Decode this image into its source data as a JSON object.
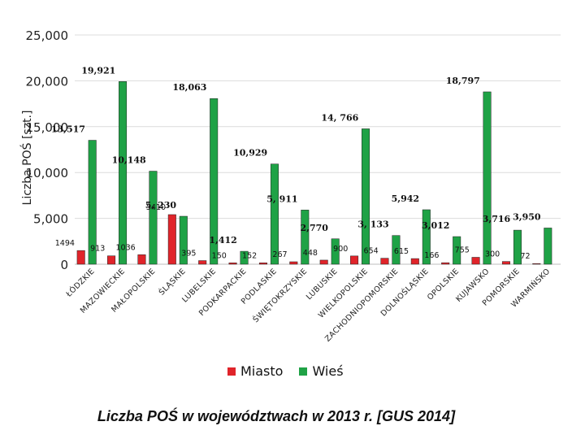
{
  "chart_data": {
    "type": "bar",
    "ylabel": "Liczba POŚ [szt.]",
    "ylim": [
      0,
      25000
    ],
    "yticks": [
      "0",
      "5,000",
      "10,000",
      "15,000",
      "20,000",
      "25,000"
    ],
    "ytick_values": [
      0,
      5000,
      10000,
      15000,
      20000,
      25000
    ],
    "grid": true,
    "categories": [
      "ŁÓDZKIE",
      "MAZOWIECKIE",
      "MAŁOPOLSKIE",
      "ŚLĄSKIE",
      "LUBELSKIE",
      "PODKARPACKIE",
      "PODLASKIE",
      "ŚWIĘTOKRZYSKIE",
      "LUBUSKIE",
      "WIELKOPOLSKIE",
      "ZACHODNIOPOMORSKIE",
      "DOLNOŚLĄSKIE",
      "OPOLSKIE",
      "KUJAWSKO",
      "POMORSKIE",
      "WARMIŃSKO"
    ],
    "series": [
      {
        "name": "Miasto",
        "color": "#e0242a",
        "values": [
          1494,
          913,
          1036,
          5410,
          395,
          150,
          152,
          267,
          448,
          900,
          654,
          615,
          166,
          755,
          300,
          72
        ],
        "labels": [
          "1494",
          "913",
          "1036",
          "5410",
          "395",
          "150",
          "152",
          "267",
          "448",
          "900",
          "654",
          "615",
          "166",
          "755",
          "300",
          "72"
        ]
      },
      {
        "name": "Wieś",
        "color": "#1fa246",
        "values": [
          13517,
          19921,
          10148,
          5230,
          18063,
          1412,
          10929,
          5911,
          2770,
          14766,
          3133,
          5942,
          3012,
          18797,
          3716,
          3950
        ],
        "labels": [
          "13,517",
          "19,921",
          "10,148",
          "5, 230",
          "18,063",
          "1,412",
          "10,929",
          "5, 911",
          "2,770",
          "14, 766",
          "3, 133",
          "5,942",
          "3,012",
          "18,797",
          "3,716",
          "3,950"
        ]
      }
    ],
    "legend_placement": "bottom-center"
  },
  "legend": {
    "items": [
      {
        "label": "Miasto",
        "color": "#e0242a"
      },
      {
        "label": "Wieś",
        "color": "#1fa246"
      }
    ]
  },
  "caption": "Liczba POŚ w województwach w 2013 r. [GUS 2014]"
}
